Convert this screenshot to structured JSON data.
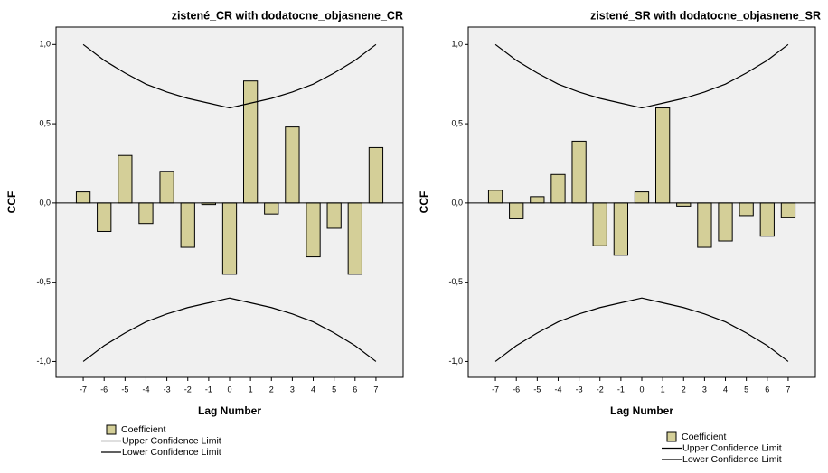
{
  "chart_data": [
    {
      "type": "bar",
      "title": "zistené_CR with dodatocne_objasnene_CR",
      "xlabel": "Lag Number",
      "ylabel": "CCF",
      "x": [
        -7,
        -6,
        -5,
        -4,
        -3,
        -2,
        -1,
        0,
        1,
        2,
        3,
        4,
        5,
        6,
        7
      ],
      "xlim": [
        -8.3,
        8.3
      ],
      "xticks": [
        -7,
        -6,
        -5,
        -4,
        -3,
        -2,
        -1,
        0,
        1,
        2,
        3,
        4,
        5,
        6,
        7
      ],
      "ylim": [
        -1.1,
        1.11
      ],
      "yticks": [
        {
          "value": -1,
          "label": "-1,0"
        },
        {
          "value": -0.5,
          "label": "-0,5"
        },
        {
          "value": 0,
          "label": "0,0"
        },
        {
          "value": 0.5,
          "label": "0,5"
        },
        {
          "value": 1,
          "label": "1,0"
        }
      ],
      "series": [
        {
          "name": "Coefficient",
          "type": "bar",
          "color": "#d4cf98",
          "values": [
            0.07,
            -0.18,
            0.3,
            -0.13,
            0.2,
            -0.28,
            -0.01,
            -0.45,
            0.77,
            -0.07,
            0.48,
            -0.34,
            -0.16,
            -0.45,
            0.35
          ]
        },
        {
          "name": "Upper Confidence Limit",
          "type": "line",
          "color": "#000000",
          "values": [
            1.0,
            0.9,
            0.82,
            0.75,
            0.7,
            0.66,
            0.63,
            0.6,
            0.63,
            0.66,
            0.7,
            0.75,
            0.82,
            0.9,
            1.0
          ]
        },
        {
          "name": "Lower Confidence Limit",
          "type": "line",
          "color": "#000000",
          "values": [
            -1.0,
            -0.9,
            -0.82,
            -0.75,
            -0.7,
            -0.66,
            -0.63,
            -0.6,
            -0.63,
            -0.66,
            -0.7,
            -0.75,
            -0.82,
            -0.9,
            -1.0
          ]
        }
      ]
    },
    {
      "type": "bar",
      "title": "zistené_SR with dodatocne_objasnene_SR",
      "xlabel": "Lag Number",
      "ylabel": "CCF",
      "x": [
        -7,
        -6,
        -5,
        -4,
        -3,
        -2,
        -1,
        0,
        1,
        2,
        3,
        4,
        5,
        6,
        7
      ],
      "xlim": [
        -8.3,
        8.3
      ],
      "xticks": [
        -7,
        -6,
        -5,
        -4,
        -3,
        -2,
        -1,
        0,
        1,
        2,
        3,
        4,
        5,
        6,
        7
      ],
      "ylim": [
        -1.1,
        1.11
      ],
      "yticks": [
        {
          "value": -1,
          "label": "-1,0"
        },
        {
          "value": -0.5,
          "label": "-0,5"
        },
        {
          "value": 0,
          "label": "0,0"
        },
        {
          "value": 0.5,
          "label": "0,5"
        },
        {
          "value": 1,
          "label": "1,0"
        }
      ],
      "series": [
        {
          "name": "Coefficient",
          "type": "bar",
          "color": "#d4cf98",
          "values": [
            0.08,
            -0.1,
            0.04,
            0.18,
            0.39,
            -0.27,
            -0.33,
            0.07,
            0.6,
            -0.02,
            -0.28,
            -0.24,
            -0.08,
            -0.21,
            -0.09
          ]
        },
        {
          "name": "Upper Confidence Limit",
          "type": "line",
          "color": "#000000",
          "values": [
            1.0,
            0.9,
            0.82,
            0.75,
            0.7,
            0.66,
            0.63,
            0.6,
            0.63,
            0.66,
            0.7,
            0.75,
            0.82,
            0.9,
            1.0
          ]
        },
        {
          "name": "Lower Confidence Limit",
          "type": "line",
          "color": "#000000",
          "values": [
            -1.0,
            -0.9,
            -0.82,
            -0.75,
            -0.7,
            -0.66,
            -0.63,
            -0.6,
            -0.63,
            -0.66,
            -0.7,
            -0.75,
            -0.82,
            -0.9,
            -1.0
          ]
        }
      ]
    }
  ]
}
